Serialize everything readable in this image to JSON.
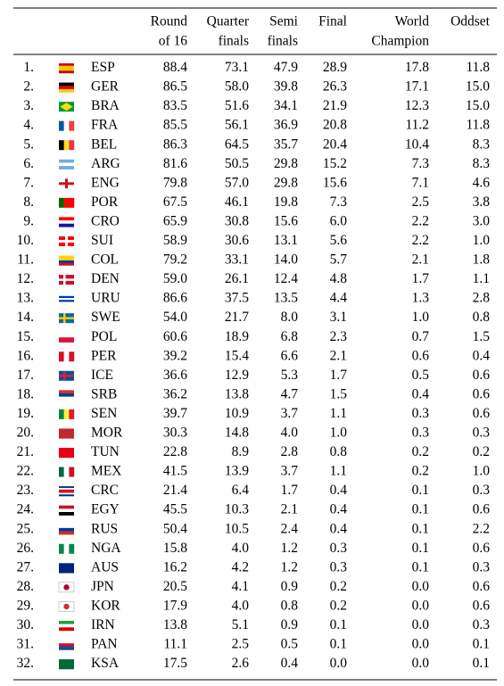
{
  "table": {
    "header": [
      [
        "Round",
        "of 16"
      ],
      [
        "Quarter",
        "finals"
      ],
      [
        "Semi",
        "finals"
      ],
      [
        "Final"
      ],
      [
        "World",
        "Champion"
      ],
      [
        "Oddset"
      ]
    ],
    "rows": [
      [
        "1.",
        "ESP",
        "88.4",
        "73.1",
        "47.9",
        "28.9",
        "17.8",
        "11.8"
      ],
      [
        "2.",
        "GER",
        "86.5",
        "58.0",
        "39.8",
        "26.3",
        "17.1",
        "15.0"
      ],
      [
        "3.",
        "BRA",
        "83.5",
        "51.6",
        "34.1",
        "21.9",
        "12.3",
        "15.0"
      ],
      [
        "4.",
        "FRA",
        "85.5",
        "56.1",
        "36.9",
        "20.8",
        "11.2",
        "11.8"
      ],
      [
        "5.",
        "BEL",
        "86.3",
        "64.5",
        "35.7",
        "20.4",
        "10.4",
        "8.3"
      ],
      [
        "6.",
        "ARG",
        "81.6",
        "50.5",
        "29.8",
        "15.2",
        "7.3",
        "8.3"
      ],
      [
        "7.",
        "ENG",
        "79.8",
        "57.0",
        "29.8",
        "15.6",
        "7.1",
        "4.6"
      ],
      [
        "8.",
        "POR",
        "67.5",
        "46.1",
        "19.8",
        "7.3",
        "2.5",
        "3.8"
      ],
      [
        "9.",
        "CRO",
        "65.9",
        "30.8",
        "15.6",
        "6.0",
        "2.2",
        "3.0"
      ],
      [
        "10.",
        "SUI",
        "58.9",
        "30.6",
        "13.1",
        "5.6",
        "2.2",
        "1.0"
      ],
      [
        "11.",
        "COL",
        "79.2",
        "33.1",
        "14.0",
        "5.7",
        "2.1",
        "1.8"
      ],
      [
        "12.",
        "DEN",
        "59.0",
        "26.1",
        "12.4",
        "4.8",
        "1.7",
        "1.1"
      ],
      [
        "13.",
        "URU",
        "86.6",
        "37.5",
        "13.5",
        "4.4",
        "1.3",
        "2.8"
      ],
      [
        "14.",
        "SWE",
        "54.0",
        "21.7",
        "8.0",
        "3.1",
        "1.0",
        "0.8"
      ],
      [
        "15.",
        "POL",
        "60.6",
        "18.9",
        "6.8",
        "2.3",
        "0.7",
        "1.5"
      ],
      [
        "16.",
        "PER",
        "39.2",
        "15.4",
        "6.6",
        "2.1",
        "0.6",
        "0.4"
      ],
      [
        "17.",
        "ICE",
        "36.6",
        "12.9",
        "5.3",
        "1.7",
        "0.5",
        "0.6"
      ],
      [
        "18.",
        "SRB",
        "36.2",
        "13.8",
        "4.7",
        "1.5",
        "0.4",
        "0.6"
      ],
      [
        "19.",
        "SEN",
        "39.7",
        "10.9",
        "3.7",
        "1.1",
        "0.3",
        "0.6"
      ],
      [
        "20.",
        "MOR",
        "30.3",
        "14.8",
        "4.0",
        "1.0",
        "0.3",
        "0.3"
      ],
      [
        "21.",
        "TUN",
        "22.8",
        "8.9",
        "2.8",
        "0.8",
        "0.2",
        "0.2"
      ],
      [
        "22.",
        "MEX",
        "41.5",
        "13.9",
        "3.7",
        "1.1",
        "0.2",
        "1.0"
      ],
      [
        "23.",
        "CRC",
        "21.4",
        "6.4",
        "1.7",
        "0.4",
        "0.1",
        "0.3"
      ],
      [
        "24.",
        "EGY",
        "45.5",
        "10.3",
        "2.1",
        "0.4",
        "0.1",
        "0.6"
      ],
      [
        "25.",
        "RUS",
        "50.4",
        "10.5",
        "2.4",
        "0.4",
        "0.1",
        "2.2"
      ],
      [
        "26.",
        "NGA",
        "15.8",
        "4.0",
        "1.2",
        "0.3",
        "0.1",
        "0.6"
      ],
      [
        "27.",
        "AUS",
        "16.2",
        "4.2",
        "1.2",
        "0.3",
        "0.1",
        "0.3"
      ],
      [
        "28.",
        "JPN",
        "20.5",
        "4.1",
        "0.9",
        "0.2",
        "0.0",
        "0.6"
      ],
      [
        "29.",
        "KOR",
        "17.9",
        "4.0",
        "0.8",
        "0.2",
        "0.0",
        "0.6"
      ],
      [
        "30.",
        "IRN",
        "13.8",
        "5.1",
        "0.9",
        "0.1",
        "0.0",
        "0.3"
      ],
      [
        "31.",
        "PAN",
        "11.1",
        "2.5",
        "0.5",
        "0.1",
        "0.0",
        "0.1"
      ],
      [
        "32.",
        "KSA",
        "17.5",
        "2.6",
        "0.4",
        "0.0",
        "0.0",
        "0.1"
      ]
    ]
  }
}
